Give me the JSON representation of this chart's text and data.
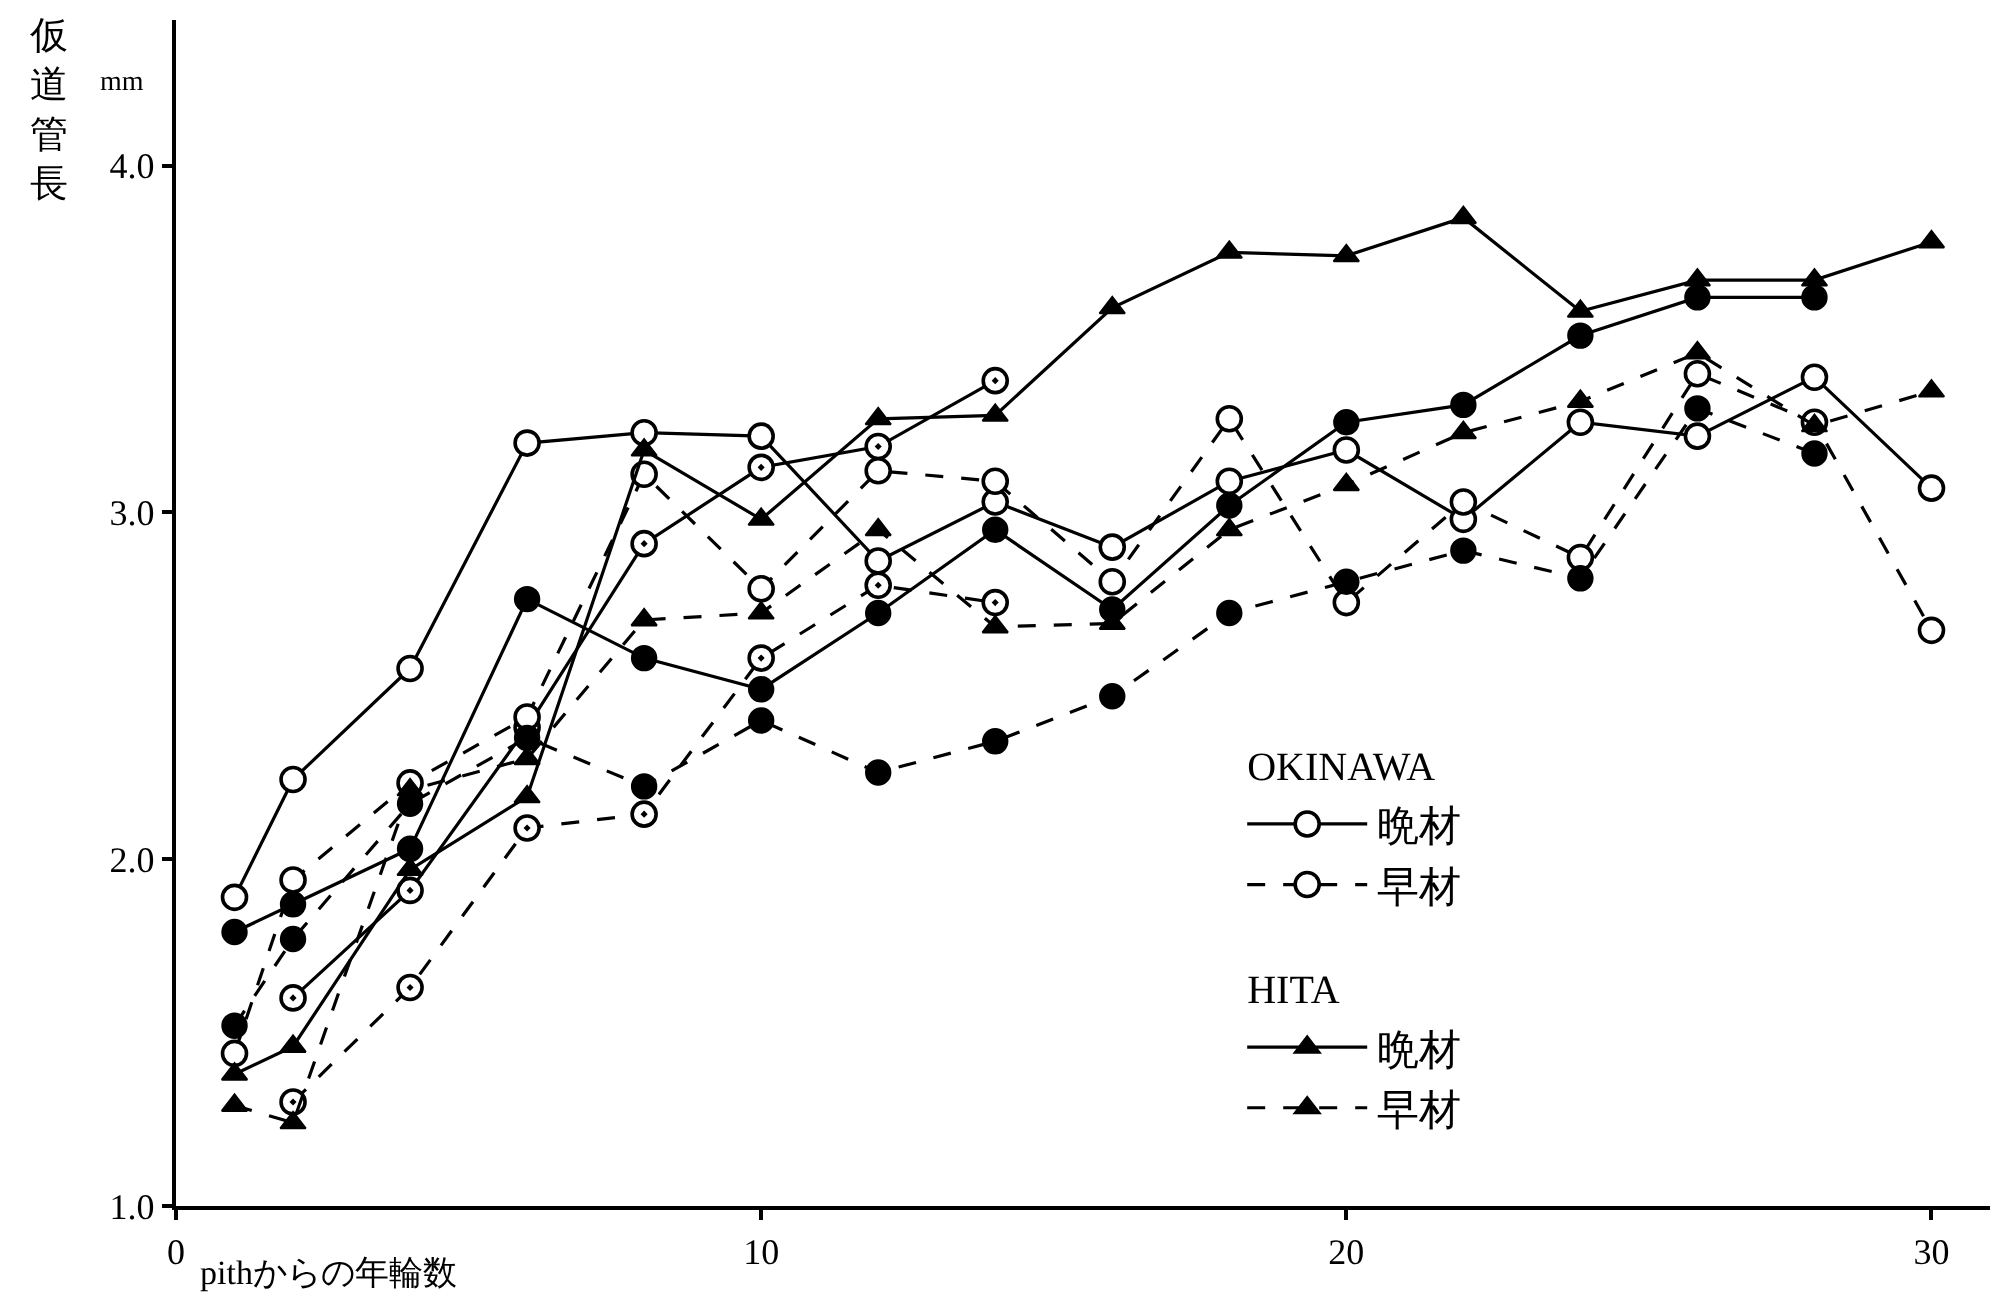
{
  "chart_data": {
    "type": "line",
    "xlabel": "pithからの年輪数",
    "ylabel": "仮道管長",
    "annotations": [
      "mm",
      "OKINAWA",
      "HITA"
    ],
    "xlim": [
      0,
      31
    ],
    "xticks": [
      0,
      10,
      20,
      30
    ],
    "ylim": [
      1.0,
      4.42
    ],
    "yticks": [
      {
        "value": 1,
        "label": "1.0"
      },
      {
        "value": 2,
        "label": "2.0"
      },
      {
        "value": 3,
        "label": "3.0"
      },
      {
        "value": 4,
        "label": "4.0"
      }
    ],
    "grid": false,
    "legend": "bottom right",
    "series": [
      {
        "name": "晩材",
        "color": "#000000",
        "marker": "circle-open",
        "line_style": "solid",
        "x": [
          1,
          2,
          4,
          6,
          8,
          10,
          12,
          14,
          16,
          18,
          20,
          22,
          24,
          26,
          28,
          30
        ],
        "values": [
          1.89,
          2.23,
          2.55,
          3.2,
          3.23,
          3.22,
          2.86,
          3.03,
          2.9,
          3.09,
          3.18,
          2.98,
          3.26,
          3.22,
          3.39,
          3.07
        ]
      },
      {
        "color": "#000000",
        "marker": "circle",
        "line_style": "solid",
        "x": [
          1,
          2,
          4,
          6,
          8,
          10,
          12,
          14,
          16,
          18,
          20,
          22,
          24,
          26,
          28
        ],
        "values": [
          1.79,
          1.87,
          2.03,
          2.75,
          2.58,
          2.49,
          2.71,
          2.95,
          2.72,
          3.02,
          3.26,
          3.31,
          3.51,
          3.62,
          3.62
        ]
      },
      {
        "color": "#000000",
        "marker": "circle-open-dot",
        "line_style": "solid",
        "x": [
          2,
          4,
          6,
          8,
          10,
          12,
          14
        ],
        "values": [
          1.6,
          1.91,
          2.38,
          2.91,
          3.13,
          3.19,
          3.38
        ]
      },
      {
        "name": "早材",
        "color": "#000000",
        "marker": "circle-open",
        "line_style": "dashed",
        "x": [
          1,
          2,
          4,
          6,
          8,
          10,
          12,
          14,
          16,
          18,
          20,
          22,
          24,
          26,
          28,
          30
        ],
        "values": [
          1.44,
          1.94,
          2.22,
          2.41,
          3.11,
          2.78,
          3.12,
          3.09,
          2.8,
          3.27,
          2.74,
          3.03,
          2.87,
          3.4,
          3.26,
          2.66
        ]
      },
      {
        "color": "#000000",
        "marker": "circle",
        "line_style": "dashed",
        "x": [
          1,
          2,
          4,
          6,
          8,
          10,
          12,
          14,
          16,
          18,
          20,
          22,
          24,
          26,
          28
        ],
        "values": [
          1.52,
          1.77,
          2.16,
          2.35,
          2.21,
          2.4,
          2.25,
          2.34,
          2.47,
          2.71,
          2.8,
          2.89,
          2.81,
          3.3,
          3.17
        ]
      },
      {
        "color": "#000000",
        "marker": "circle-open-dot",
        "line_style": "dashed",
        "x": [
          2,
          4,
          6,
          8,
          10,
          12,
          14
        ],
        "values": [
          1.3,
          1.63,
          2.09,
          2.13,
          2.58,
          2.79,
          2.74
        ]
      },
      {
        "name": "晩材",
        "color": "#000000",
        "marker": "triangle",
        "line_style": "solid",
        "x": [
          1,
          2,
          4,
          6,
          8,
          10,
          12,
          14,
          16,
          18,
          20,
          22,
          24,
          26,
          28,
          30
        ],
        "values": [
          1.38,
          1.46,
          1.97,
          2.18,
          3.18,
          2.98,
          3.27,
          3.28,
          3.59,
          3.75,
          3.74,
          3.85,
          3.58,
          3.67,
          3.67,
          3.78
        ]
      },
      {
        "name": "早材",
        "color": "#000000",
        "marker": "triangle",
        "line_style": "dashed",
        "x": [
          1,
          2,
          4,
          6,
          8,
          10,
          12,
          14,
          16,
          18,
          20,
          22,
          24,
          26,
          28,
          30
        ],
        "values": [
          1.29,
          1.24,
          2.2,
          2.29,
          2.69,
          2.71,
          2.95,
          2.67,
          2.68,
          2.95,
          3.08,
          3.23,
          3.32,
          3.46,
          3.25,
          3.35
        ]
      }
    ]
  }
}
